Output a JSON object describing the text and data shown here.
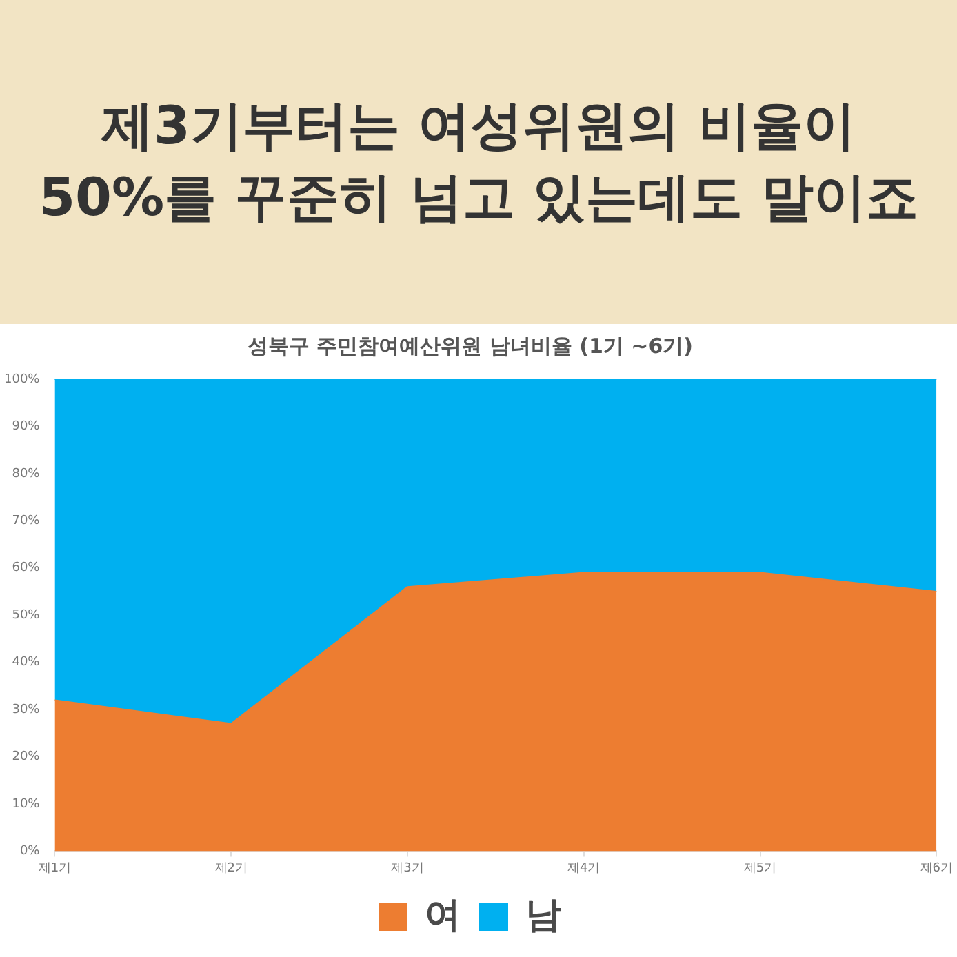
{
  "chart_data": {
    "type": "area",
    "title": "제3기부터는 여성위원의 비율이\n50%를 꾸준히 넘고 있는데도 말이죠",
    "subtitle": "성북구 주민참여예산위원 남녀비율 (1기 ~6기)",
    "categories": [
      "제1기",
      "제2기",
      "제3기",
      "제4기",
      "제5기",
      "제6기"
    ],
    "series": [
      {
        "name": "여",
        "color": "#ed7d31",
        "values": [
          32,
          27,
          56,
          59,
          59,
          55
        ]
      },
      {
        "name": "남",
        "color": "#00b0f0",
        "values": [
          68,
          73,
          44,
          41,
          41,
          45
        ]
      }
    ],
    "stacked": true,
    "ylim": [
      0,
      100
    ],
    "yticks": [
      {
        "value": 0,
        "label": "0%"
      },
      {
        "value": 10,
        "label": "10%"
      },
      {
        "value": 20,
        "label": "20%"
      },
      {
        "value": 30,
        "label": "30%"
      },
      {
        "value": 40,
        "label": "40%"
      },
      {
        "value": 50,
        "label": "50%"
      },
      {
        "value": 60,
        "label": "60%"
      },
      {
        "value": 70,
        "label": "70%"
      },
      {
        "value": 80,
        "label": "80%"
      },
      {
        "value": 90,
        "label": "90%"
      },
      {
        "value": 100,
        "label": "100%"
      }
    ],
    "grid": false,
    "legend": "bottom",
    "marker": "none"
  }
}
